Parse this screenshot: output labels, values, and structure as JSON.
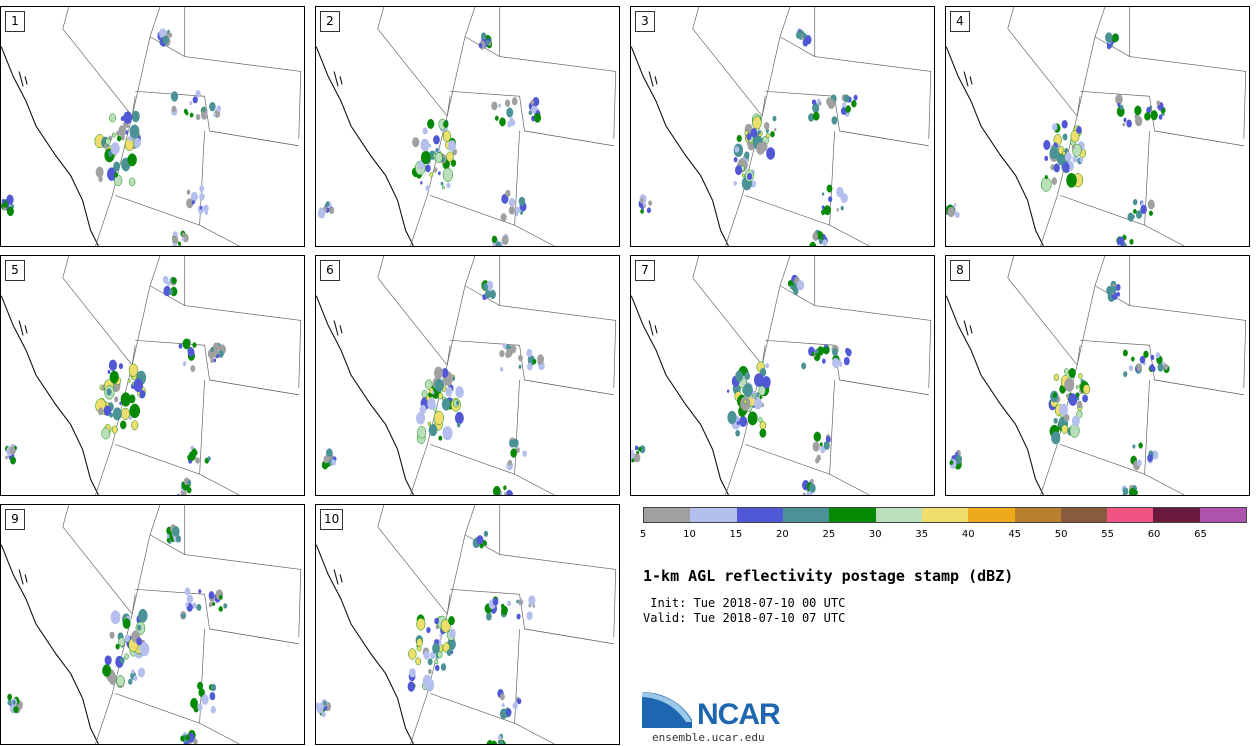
{
  "title": "1-km AGL reflectivity postage stamp (dBZ)",
  "init": " Init: Tue 2018-07-10 00 UTC",
  "valid": "Valid: Tue 2018-07-10 07 UTC",
  "site": "ensemble.ucar.edu",
  "logo_text": "NCAR",
  "members": [
    "1",
    "2",
    "3",
    "4",
    "5",
    "6",
    "7",
    "8",
    "9",
    "10"
  ],
  "colorbar": {
    "ticks": [
      "5",
      "10",
      "15",
      "20",
      "25",
      "30",
      "35",
      "40",
      "45",
      "50",
      "55",
      "60",
      "65"
    ],
    "colors": [
      "#a0a0a0",
      "#b4bfee",
      "#5058d6",
      "#4a9296",
      "#068a06",
      "#bcdfbb",
      "#efde6e",
      "#eeaa1a",
      "#b87f2e",
      "#8a5a3c",
      "#ef5482",
      "#6a1a3c",
      "#ad52ae"
    ]
  }
}
